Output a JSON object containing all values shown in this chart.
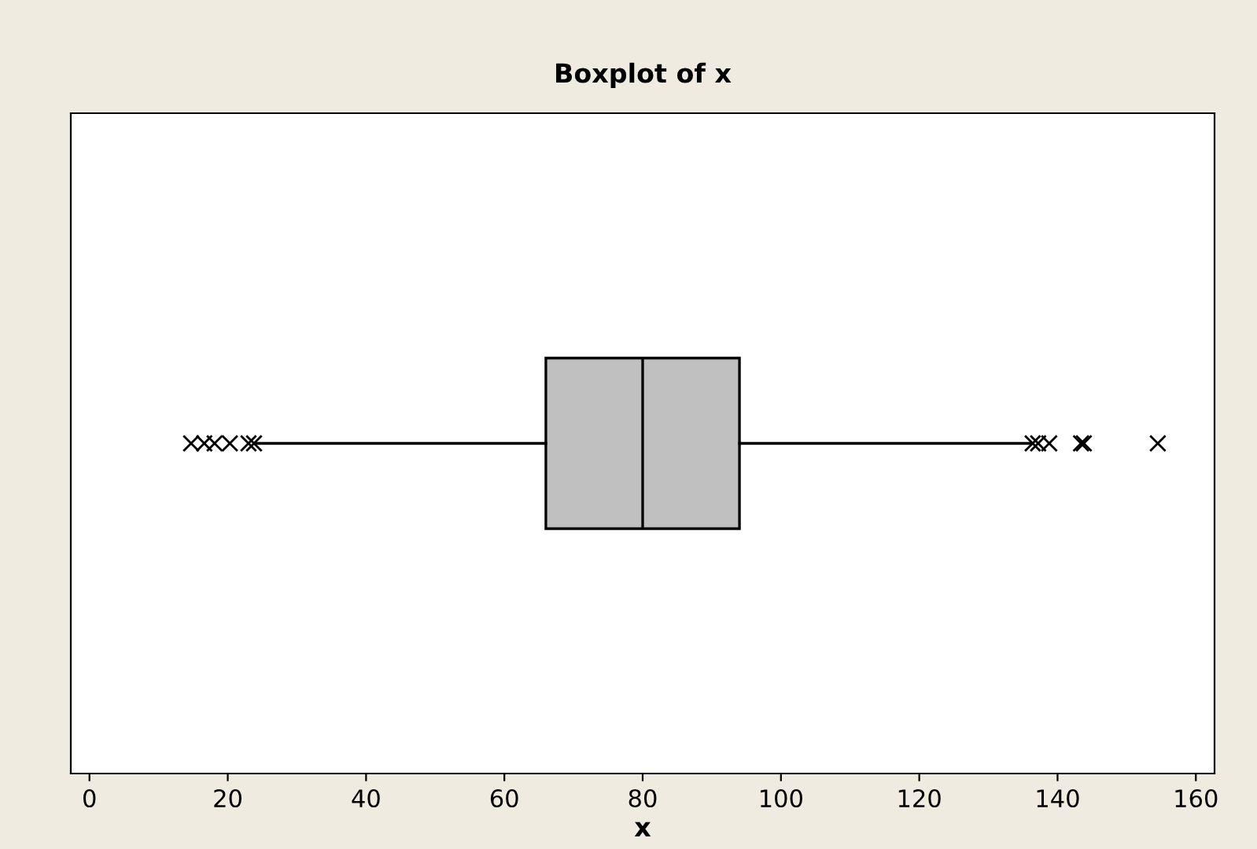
{
  "chart_data": {
    "type": "box",
    "title": "Boxplot of x",
    "xlabel": "x",
    "orientation": "horizontal",
    "categories": [
      null
    ],
    "boxes": [
      {
        "low": 24.2,
        "q1": 66.0,
        "median": 80.0,
        "q3": 94.0,
        "high": 136.1,
        "outliers": [
          14.7,
          16.6,
          18.1,
          20.3,
          23.0,
          23.8,
          136.4,
          137.2,
          138.8,
          143.4,
          143.8,
          154.5
        ]
      }
    ],
    "color": "#c0c0c0",
    "marker": "cross",
    "xlim": [
      -2.7,
      162.7
    ],
    "xticks": [
      0,
      20,
      40,
      60,
      80,
      100,
      120,
      140,
      160
    ],
    "grid": false,
    "legend": false
  }
}
